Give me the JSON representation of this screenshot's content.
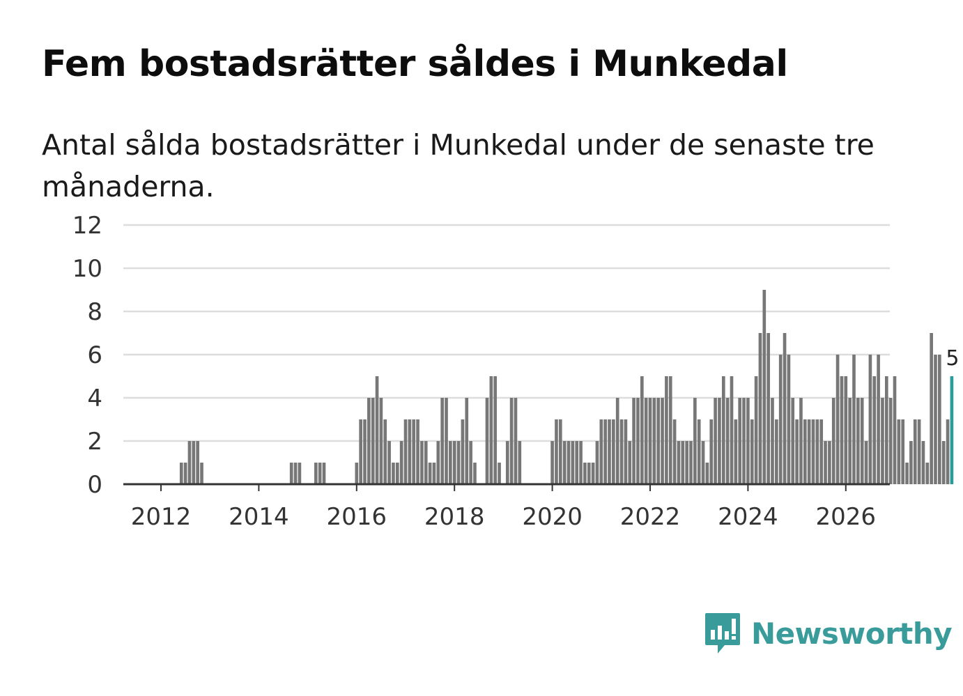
{
  "title": "Fem bostadsrätter såldes i Munkedal",
  "subtitle": "Antal sålda bostadsrätter i Munkedal under de senaste tre månaderna.",
  "brand": {
    "name": "Newsworthy",
    "color": "#3a9b9b"
  },
  "chart_data": {
    "type": "bar",
    "title": "Fem bostadsrätter såldes i Munkedal",
    "xlabel": "",
    "ylabel": "",
    "ylim": [
      0,
      12
    ],
    "yticks": [
      "0",
      "2",
      "4",
      "6",
      "8",
      "10",
      "12"
    ],
    "xticks": [
      "2012",
      "2014",
      "2016",
      "2018",
      "2020",
      "2022",
      "2024",
      "2026"
    ],
    "grid": true,
    "bar_color": "#777777",
    "highlight_color": "#2a9d9a",
    "first_month": "2011-01",
    "series": [
      {
        "name": "Antal sålda bostadsrätter",
        "values": [
          0,
          0,
          0,
          0,
          0,
          0,
          0,
          0,
          0,
          0,
          0,
          0,
          0,
          0,
          0,
          0,
          0,
          1,
          1,
          2,
          2,
          2,
          1,
          0,
          0,
          0,
          0,
          0,
          0,
          0,
          0,
          0,
          0,
          0,
          0,
          0,
          0,
          0,
          0,
          0,
          0,
          0,
          0,
          0,
          1,
          1,
          1,
          0,
          0,
          0,
          1,
          1,
          1,
          0,
          0,
          0,
          0,
          0,
          0,
          0,
          1,
          3,
          3,
          4,
          4,
          5,
          4,
          3,
          2,
          1,
          1,
          2,
          3,
          3,
          3,
          3,
          2,
          2,
          1,
          1,
          2,
          4,
          4,
          2,
          2,
          2,
          3,
          4,
          2,
          1,
          0,
          0,
          4,
          5,
          5,
          1,
          0,
          2,
          4,
          4,
          2,
          0,
          0,
          0,
          0,
          0,
          0,
          0,
          2,
          3,
          3,
          2,
          2,
          2,
          2,
          2,
          1,
          1,
          1,
          2,
          3,
          3,
          3,
          3,
          4,
          3,
          3,
          2,
          4,
          4,
          5,
          4,
          4,
          4,
          4,
          4,
          5,
          5,
          3,
          2,
          2,
          2,
          2,
          4,
          3,
          2,
          1,
          3,
          4,
          4,
          5,
          4,
          5,
          3,
          4,
          4,
          4,
          3,
          5,
          7,
          9,
          7,
          4,
          3,
          6,
          7,
          6,
          4,
          3,
          4,
          3,
          3,
          3,
          3,
          3,
          2,
          2,
          4,
          6,
          5,
          5,
          4,
          6,
          4,
          4,
          2,
          6,
          5,
          6,
          4,
          5,
          4,
          5,
          3,
          3,
          1,
          2,
          3,
          3,
          2,
          1,
          7,
          6,
          6,
          2,
          3,
          5
        ]
      }
    ],
    "last_value": 5,
    "last_value_label": "5"
  }
}
